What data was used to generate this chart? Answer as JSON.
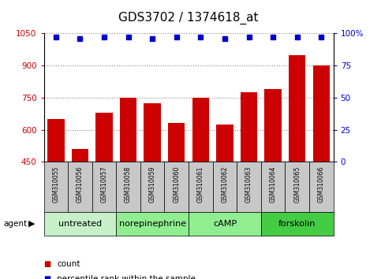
{
  "title": "GDS3702 / 1374618_at",
  "samples": [
    "GSM310055",
    "GSM310056",
    "GSM310057",
    "GSM310058",
    "GSM310059",
    "GSM310060",
    "GSM310061",
    "GSM310062",
    "GSM310063",
    "GSM310064",
    "GSM310065",
    "GSM310066"
  ],
  "counts": [
    650,
    510,
    680,
    750,
    725,
    630,
    750,
    625,
    775,
    790,
    950,
    900
  ],
  "percentiles": [
    97,
    96,
    97,
    97,
    96,
    97,
    97,
    96,
    97,
    97,
    97,
    97
  ],
  "bar_color": "#cc0000",
  "dot_color": "#0000cc",
  "ylim_left": [
    450,
    1050
  ],
  "ylim_right": [
    0,
    100
  ],
  "yticks_left": [
    450,
    600,
    750,
    900,
    1050
  ],
  "yticks_right": [
    0,
    25,
    50,
    75,
    100
  ],
  "agent_groups": [
    {
      "label": "untreated",
      "start": 0,
      "end": 3,
      "color": "#c8f0c8"
    },
    {
      "label": "norepinephrine",
      "start": 3,
      "end": 6,
      "color": "#90ee90"
    },
    {
      "label": "cAMP",
      "start": 6,
      "end": 9,
      "color": "#90ee90"
    },
    {
      "label": "forskolin",
      "start": 9,
      "end": 12,
      "color": "#44cc44"
    }
  ],
  "sample_bg_color": "#c8c8c8",
  "grid_color": "#888888",
  "legend_count_color": "#cc0000",
  "legend_pct_color": "#0000cc",
  "left_tick_color": "#cc0000",
  "right_tick_color": "#0000cc",
  "title_fontsize": 11,
  "tick_fontsize": 7.5,
  "sample_fontsize": 5.5,
  "agent_label_fontsize": 8,
  "legend_fontsize": 7.5
}
